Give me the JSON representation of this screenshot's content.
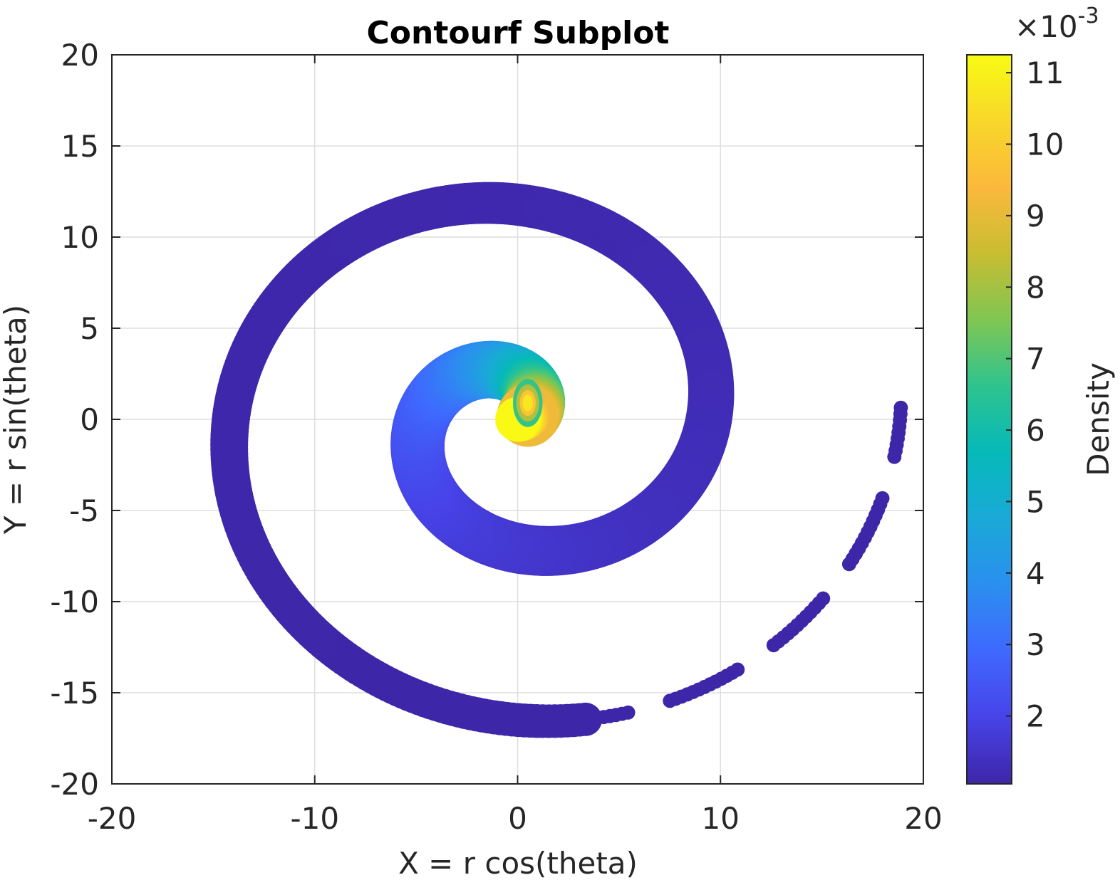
{
  "chart_data": {
    "type": "contourf",
    "title": "Contourf Subplot",
    "xlabel": "X = r cos(theta)",
    "ylabel": "Y = r sin(theta)",
    "xlim": [
      -20,
      20
    ],
    "ylim": [
      -20,
      20
    ],
    "xticks": [
      -20,
      -10,
      0,
      10,
      20
    ],
    "yticks": [
      -20,
      -15,
      -10,
      -5,
      0,
      5,
      10,
      15,
      20
    ],
    "xtick_labels": [
      "-20",
      "-10",
      "0",
      "10",
      "20"
    ],
    "ytick_labels": [
      "-20",
      "-15",
      "-10",
      "-5",
      "0",
      "5",
      "10",
      "15",
      "20"
    ],
    "grid": true,
    "colorbar": {
      "label": "Density",
      "range": [
        1.05,
        11.25
      ],
      "ticks": [
        2,
        3,
        4,
        5,
        6,
        7,
        8,
        9,
        10,
        11
      ],
      "tick_labels": [
        "2",
        "3",
        "4",
        "5",
        "6",
        "7",
        "8",
        "9",
        "10",
        "11"
      ],
      "exponent_multiplier": "×10",
      "exponent_power": "-3",
      "colormap": "parula",
      "colormap_stops": [
        "#3e26a8",
        "#4743e8",
        "#3f68fe",
        "#2b8fef",
        "#1aa9d7",
        "#05b9b9",
        "#2ec38e",
        "#7fc653",
        "#c8bd32",
        "#fbb93c",
        "#f8d72a",
        "#f9fb14"
      ]
    },
    "spiral": {
      "radius_formula": "r = 1.5 * theta",
      "theta_range_rad": [
        0,
        12.6
      ],
      "peak_density": 11.2,
      "peak_location": [
        0.5,
        0.9
      ],
      "min_density": 1.05
    }
  }
}
